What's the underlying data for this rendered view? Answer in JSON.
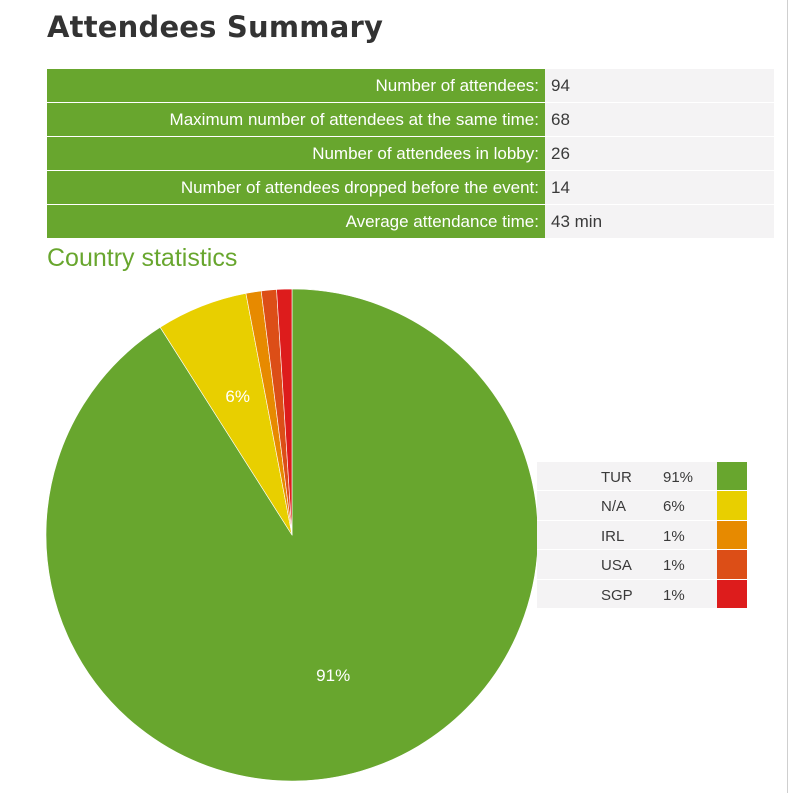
{
  "page": {
    "title": "Attendees Summary"
  },
  "summary": {
    "rows": [
      {
        "label": "Number of attendees:",
        "value": "94"
      },
      {
        "label": "Maximum number of attendees at the same time:",
        "value": "68"
      },
      {
        "label": "Number of attendees in lobby:",
        "value": "26"
      },
      {
        "label": "Number of attendees dropped before the event:",
        "value": "14"
      },
      {
        "label": "Average attendance time:",
        "value": "43 min"
      }
    ]
  },
  "country_section": {
    "title": "Country statistics"
  },
  "chart_data": {
    "type": "pie",
    "categories": [
      "TUR",
      "N/A",
      "IRL",
      "USA",
      "SGP"
    ],
    "values": [
      91,
      6,
      1,
      1,
      1
    ],
    "value_labels": [
      "91%",
      "6%",
      "1%",
      "1%",
      "1%"
    ],
    "slice_labels_shown": [
      "91%",
      "6%",
      "",
      "",
      ""
    ],
    "colors": [
      "#68a62e",
      "#e8cf00",
      "#e78a00",
      "#dc4e17",
      "#dd1c1c"
    ],
    "start_angle": "top (12 o'clock), clockwise",
    "legend_placement": "right"
  }
}
